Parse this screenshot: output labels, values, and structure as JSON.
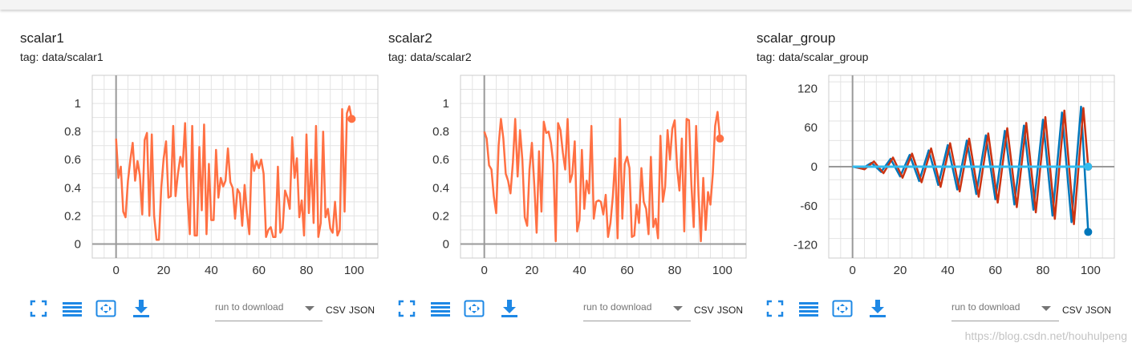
{
  "toolbar": {
    "run_select_placeholder": "run to download",
    "csv_label": "CSV",
    "json_label": "JSON"
  },
  "watermark": "https://blog.csdn.net/houhulpeng",
  "colors": {
    "orange": "#ff7043",
    "red": "#cc3311",
    "blue": "#0077bb",
    "lightblue": "#33bbee",
    "grid": "#dddddd",
    "axis": "#aaaaaa"
  },
  "icons": [
    "fit-domain-icon",
    "toggle-log-icon",
    "reset-zoom-icon",
    "download-icon"
  ],
  "chart_data": [
    {
      "type": "line",
      "title": "scalar1",
      "tag_prefix": "tag:",
      "tag": "data/scalar1",
      "xlim": [
        -10,
        110
      ],
      "ylim": [
        -0.1,
        1.2
      ],
      "xticks": [
        0,
        20,
        40,
        60,
        80,
        100
      ],
      "yticks": [
        0,
        0.2,
        0.4,
        0.6,
        0.8,
        1
      ],
      "ytick_labels": [
        "0",
        "0.2",
        "0.4",
        "0.6",
        "0.8",
        "1"
      ],
      "series": [
        {
          "color": "#ff7043",
          "x": [
            0,
            1,
            2,
            3,
            4,
            5,
            6,
            7,
            8,
            9,
            10,
            11,
            12,
            13,
            14,
            15,
            16,
            17,
            18,
            19,
            20,
            21,
            22,
            23,
            24,
            25,
            26,
            27,
            28,
            29,
            30,
            31,
            32,
            33,
            34,
            35,
            36,
            37,
            38,
            39,
            40,
            41,
            42,
            43,
            44,
            45,
            46,
            47,
            48,
            49,
            50,
            51,
            52,
            53,
            54,
            55,
            56,
            57,
            58,
            59,
            60,
            61,
            62,
            63,
            64,
            65,
            66,
            67,
            68,
            69,
            70,
            71,
            72,
            73,
            74,
            75,
            76,
            77,
            78,
            79,
            80,
            81,
            82,
            83,
            84,
            85,
            86,
            87,
            88,
            89,
            90,
            91,
            92,
            93,
            94,
            95,
            96,
            97,
            98,
            99
          ],
          "y": [
            0.75,
            0.47,
            0.55,
            0.23,
            0.19,
            0.45,
            0.6,
            0.72,
            0.45,
            0.59,
            0.49,
            0.21,
            0.74,
            0.79,
            0.2,
            0.78,
            0.2,
            0.03,
            0.03,
            0.4,
            0.61,
            0.73,
            0.33,
            0.34,
            0.84,
            0.34,
            0.5,
            0.62,
            0.55,
            0.86,
            0.33,
            0.07,
            0.84,
            0.06,
            0.06,
            0.69,
            0.24,
            0.85,
            0.07,
            0.57,
            0.17,
            0.17,
            0.67,
            0.33,
            0.47,
            0.41,
            0.45,
            0.68,
            0.44,
            0.4,
            0.18,
            0.39,
            0.36,
            0.13,
            0.42,
            0.22,
            0.07,
            0.64,
            0.52,
            0.59,
            0.54,
            0.6,
            0.5,
            0.05,
            0.1,
            0.12,
            0.05,
            0.05,
            0.55,
            0.08,
            0.11,
            0.38,
            0.33,
            0.25,
            0.76,
            0.47,
            0.61,
            0.19,
            0.31,
            0.06,
            0.78,
            0.22,
            0.6,
            0.15,
            0.84,
            0.05,
            0.15,
            0.8,
            0.19,
            0.25,
            0.11,
            0.08,
            0.3,
            0.06,
            0.1,
            0.96,
            0.23,
            0.93,
            0.98,
            0.89
          ]
        }
      ]
    },
    {
      "type": "line",
      "title": "scalar2",
      "tag_prefix": "tag:",
      "tag": "data/scalar2",
      "xlim": [
        -10,
        110
      ],
      "ylim": [
        -0.1,
        1.2
      ],
      "xticks": [
        0,
        20,
        40,
        60,
        80,
        100
      ],
      "yticks": [
        0,
        0.2,
        0.4,
        0.6,
        0.8,
        1
      ],
      "ytick_labels": [
        "0",
        "0.2",
        "0.4",
        "0.6",
        "0.8",
        "1"
      ],
      "series": [
        {
          "color": "#ff7043",
          "x": [
            0,
            1,
            2,
            3,
            4,
            5,
            6,
            7,
            8,
            9,
            10,
            11,
            12,
            13,
            14,
            15,
            16,
            17,
            18,
            19,
            20,
            21,
            22,
            23,
            24,
            25,
            26,
            27,
            28,
            29,
            30,
            31,
            32,
            33,
            34,
            35,
            36,
            37,
            38,
            39,
            40,
            41,
            42,
            43,
            44,
            45,
            46,
            47,
            48,
            49,
            50,
            51,
            52,
            53,
            54,
            55,
            56,
            57,
            58,
            59,
            60,
            61,
            62,
            63,
            64,
            65,
            66,
            67,
            68,
            69,
            70,
            71,
            72,
            73,
            74,
            75,
            76,
            77,
            78,
            79,
            80,
            81,
            82,
            83,
            84,
            85,
            86,
            87,
            88,
            89,
            90,
            91,
            92,
            93,
            94,
            95,
            96,
            97,
            98,
            99
          ],
          "y": [
            0.8,
            0.75,
            0.56,
            0.53,
            0.34,
            0.22,
            0.7,
            0.89,
            0.75,
            0.5,
            0.45,
            0.36,
            0.58,
            0.89,
            0.48,
            0.81,
            0.6,
            0.19,
            0.13,
            0.53,
            0.72,
            0.42,
            0.08,
            0.66,
            0.23,
            0.87,
            0.79,
            0.8,
            0.72,
            0.57,
            0.02,
            0.86,
            0.81,
            0.65,
            0.53,
            0.89,
            0.44,
            0.5,
            0.73,
            0.09,
            0.17,
            0.67,
            0.25,
            0.45,
            0.36,
            0.84,
            0.18,
            0.3,
            0.31,
            0.3,
            0.21,
            0.35,
            0.05,
            0.15,
            0.34,
            0.61,
            0.04,
            0.89,
            0.18,
            0.57,
            0.62,
            0.54,
            0.05,
            0.06,
            0.28,
            0.15,
            0.54,
            0.3,
            0.25,
            0.07,
            0.62,
            0.12,
            0.18,
            0.04,
            0.77,
            0.3,
            0.41,
            0.81,
            0.6,
            0.82,
            0.88,
            0.54,
            0.38,
            0.75,
            0.09,
            0.89,
            0.88,
            0.42,
            0.12,
            0.84,
            0.35,
            0.02,
            0.47,
            0.1,
            0.37,
            0.28,
            0.5,
            0.84,
            0.94,
            0.75
          ]
        }
      ]
    },
    {
      "type": "line",
      "title": "scalar_group",
      "tag_prefix": "tag:",
      "tag": "data/scalar_group",
      "xlim": [
        -10,
        110
      ],
      "ylim": [
        -140,
        140
      ],
      "xticks": [
        0,
        20,
        40,
        60,
        80,
        100
      ],
      "yticks": [
        -120,
        -60,
        0,
        60,
        120
      ],
      "ytick_labels": [
        "-120",
        "-60",
        "0",
        "60",
        "120"
      ],
      "series": [
        {
          "color": "#0077bb",
          "x": [
            0,
            4,
            8,
            12,
            16,
            20,
            24,
            28,
            32,
            36,
            40,
            44,
            48,
            52,
            56,
            60,
            64,
            68,
            72,
            76,
            80,
            84,
            88,
            92,
            96,
            99
          ],
          "y": [
            0,
            -3,
            6,
            -8,
            12,
            -15,
            18,
            -22,
            25,
            -28,
            33,
            -35,
            40,
            -42,
            48,
            -50,
            55,
            -58,
            63,
            -66,
            72,
            -75,
            83,
            -85,
            92,
            -100
          ]
        },
        {
          "color": "#cc3311",
          "x": [
            1,
            5,
            9,
            13,
            17,
            21,
            25,
            29,
            33,
            37,
            41,
            45,
            49,
            53,
            57,
            61,
            65,
            69,
            73,
            77,
            81,
            85,
            89,
            93,
            97,
            99
          ],
          "y": [
            0,
            -4,
            8,
            -10,
            14,
            -17,
            20,
            -24,
            28,
            -31,
            36,
            -38,
            43,
            -46,
            51,
            -55,
            59,
            -62,
            67,
            -70,
            76,
            -80,
            86,
            -88,
            90,
            0
          ]
        },
        {
          "color": "#33bbee",
          "x": [
            0,
            99
          ],
          "y": [
            0,
            0
          ]
        }
      ]
    }
  ]
}
